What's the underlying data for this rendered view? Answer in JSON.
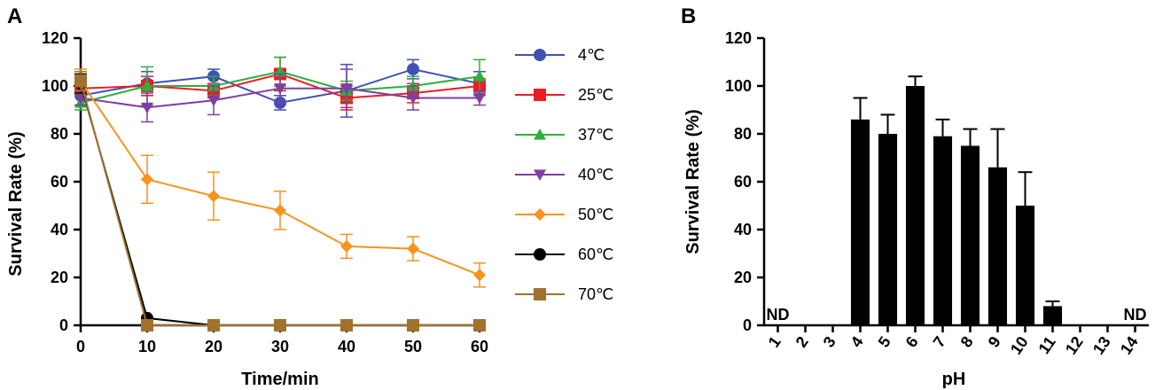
{
  "chart_data": [
    {
      "type": "line",
      "panel_label": "A",
      "xlabel": "Time/min",
      "ylabel": "Survival Rate (%)",
      "x": [
        0,
        10,
        20,
        30,
        40,
        50,
        60
      ],
      "xlim": [
        0,
        60
      ],
      "ylim": [
        0,
        120
      ],
      "x_ticks": [
        0,
        10,
        20,
        30,
        40,
        50,
        60
      ],
      "y_ticks": [
        0,
        20,
        40,
        60,
        80,
        100,
        120
      ],
      "legend_position": "right",
      "series": [
        {
          "name": "4℃",
          "color": "#3F51B5",
          "marker": "circle",
          "values": [
            96,
            101,
            104,
            93,
            98,
            107,
            101
          ],
          "errors": [
            4,
            5,
            3,
            3,
            11,
            4,
            5
          ]
        },
        {
          "name": "25℃",
          "color": "#EE1C25",
          "marker": "square",
          "values": [
            99,
            100,
            98,
            105,
            95,
            97,
            100
          ],
          "errors": [
            3,
            4,
            3,
            7,
            5,
            4,
            3
          ]
        },
        {
          "name": "37℃",
          "color": "#2EAF3E",
          "marker": "triangle-up",
          "values": [
            93,
            100,
            100,
            106,
            98,
            100,
            104
          ],
          "errors": [
            3,
            8,
            4,
            6,
            4,
            4,
            7
          ]
        },
        {
          "name": "40℃",
          "color": "#7E3FA0",
          "marker": "triangle-down",
          "values": [
            95,
            91,
            94,
            99,
            99,
            95,
            95
          ],
          "errors": [
            3,
            6,
            6,
            6,
            8,
            5,
            3
          ]
        },
        {
          "name": "50℃",
          "color": "#F7931E",
          "marker": "diamond",
          "values": [
            102,
            61,
            54,
            48,
            33,
            32,
            21
          ],
          "errors": [
            5,
            10,
            10,
            8,
            5,
            5,
            5
          ]
        },
        {
          "name": "60℃",
          "color": "#000000",
          "marker": "circle",
          "values": [
            101,
            3,
            0,
            0,
            0,
            0,
            0
          ],
          "errors": [
            4,
            0,
            0,
            0,
            0,
            0,
            0
          ]
        },
        {
          "name": "70℃",
          "color": "#A0722D",
          "marker": "square",
          "values": [
            102,
            0,
            0,
            0,
            0,
            0,
            0
          ],
          "errors": [
            4,
            0,
            0,
            0,
            0,
            0,
            0
          ]
        }
      ]
    },
    {
      "type": "bar",
      "panel_label": "B",
      "xlabel": "pH",
      "ylabel": "Survival Rate (%)",
      "ylim": [
        0,
        120
      ],
      "y_ticks": [
        0,
        20,
        40,
        60,
        80,
        100,
        120
      ],
      "categories": [
        "1",
        "2",
        "3",
        "4",
        "5",
        "6",
        "7",
        "8",
        "9",
        "10",
        "11",
        "12",
        "13",
        "14"
      ],
      "values": [
        0,
        0,
        0,
        86,
        80,
        100,
        79,
        75,
        66,
        50,
        8,
        0,
        0,
        0
      ],
      "errors": [
        0,
        0,
        0,
        9,
        8,
        4,
        7,
        7,
        16,
        14,
        2,
        0,
        0,
        0
      ],
      "bar_color": "#000000",
      "annotations": [
        {
          "category": "1",
          "text": "ND"
        },
        {
          "category": "14",
          "text": "ND"
        }
      ]
    }
  ]
}
